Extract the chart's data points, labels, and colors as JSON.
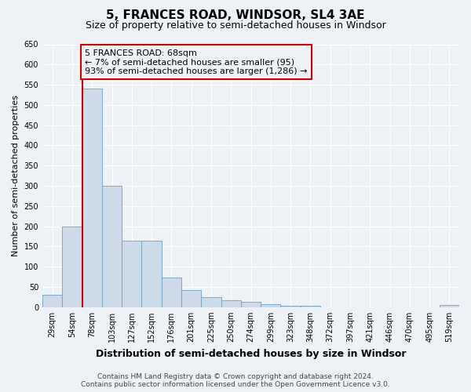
{
  "title": "5, FRANCES ROAD, WINDSOR, SL4 3AE",
  "subtitle": "Size of property relative to semi-detached houses in Windsor",
  "xlabel": "Distribution of semi-detached houses by size in Windsor",
  "ylabel": "Number of semi-detached properties",
  "categories": [
    "29sqm",
    "54sqm",
    "78sqm",
    "103sqm",
    "127sqm",
    "152sqm",
    "176sqm",
    "201sqm",
    "225sqm",
    "250sqm",
    "274sqm",
    "299sqm",
    "323sqm",
    "348sqm",
    "372sqm",
    "397sqm",
    "421sqm",
    "446sqm",
    "470sqm",
    "495sqm",
    "519sqm"
  ],
  "values": [
    30,
    200,
    540,
    300,
    165,
    165,
    73,
    43,
    25,
    18,
    13,
    7,
    4,
    4,
    0,
    0,
    0,
    0,
    0,
    0,
    5
  ],
  "bar_color": "#cddaea",
  "bar_edge_color": "#7aaac8",
  "property_line_idx": 2,
  "annotation_text_line1": "5 FRANCES ROAD: 68sqm",
  "annotation_text_line2": "← 7% of semi-detached houses are smaller (95)",
  "annotation_text_line3": "93% of semi-detached houses are larger (1,286) →",
  "ylim": [
    0,
    650
  ],
  "yticks": [
    0,
    50,
    100,
    150,
    200,
    250,
    300,
    350,
    400,
    450,
    500,
    550,
    600,
    650
  ],
  "footer_line1": "Contains HM Land Registry data © Crown copyright and database right 2024.",
  "footer_line2": "Contains public sector information licensed under the Open Government Licence v3.0.",
  "background_color": "#eef2f7",
  "grid_color": "#ffffff",
  "box_color": "#cc0000",
  "title_fontsize": 11,
  "subtitle_fontsize": 9,
  "ylabel_fontsize": 8,
  "xlabel_fontsize": 9,
  "tick_fontsize": 7,
  "annotation_fontsize": 8,
  "footer_fontsize": 6.5
}
